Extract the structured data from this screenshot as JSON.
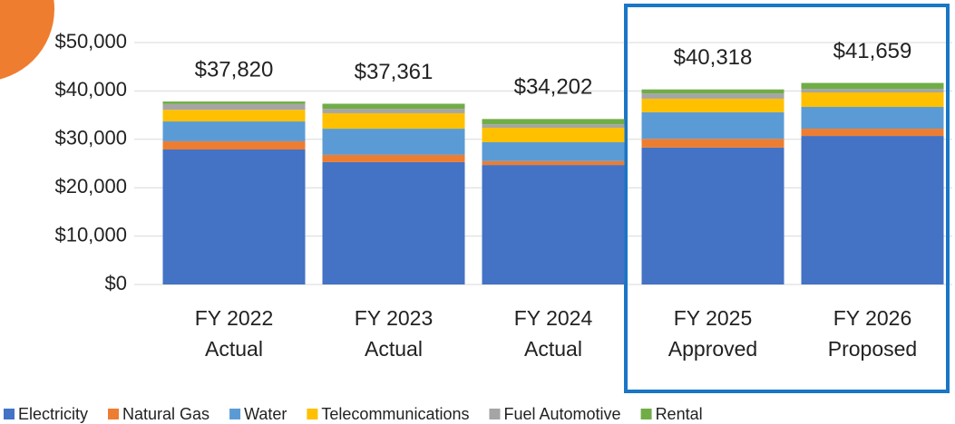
{
  "chart_data": {
    "type": "stacked_bar",
    "categories": [
      [
        "FY 2022",
        "Actual"
      ],
      [
        "FY 2023",
        "Actual"
      ],
      [
        "FY 2024",
        "Actual"
      ],
      [
        "FY 2025",
        "Approved"
      ],
      [
        "FY 2026",
        "Proposed"
      ]
    ],
    "series": [
      {
        "name": "Electricity",
        "color": "#4472c4",
        "values": [
          27900,
          25300,
          24700,
          28300,
          30700
        ]
      },
      {
        "name": "Natural Gas",
        "color": "#ed7d31",
        "values": [
          1700,
          1500,
          800,
          1800,
          1500
        ]
      },
      {
        "name": "Water",
        "color": "#5b9bd5",
        "values": [
          4100,
          5400,
          3900,
          5500,
          4500
        ]
      },
      {
        "name": "Telecommunications",
        "color": "#ffc000",
        "values": [
          2400,
          3200,
          3000,
          2800,
          3000
        ]
      },
      {
        "name": "Fuel Automotive",
        "color": "#a5a5a5",
        "values": [
          1200,
          900,
          700,
          1100,
          700
        ]
      },
      {
        "name": "Rental",
        "color": "#70ad47",
        "values": [
          520,
          1061,
          1102,
          818,
          1259
        ]
      }
    ],
    "totals": [
      37820,
      37361,
      34202,
      40318,
      41659
    ],
    "total_labels": [
      "$37,820",
      "$37,361",
      "$34,202",
      "$40,318",
      "$41,659"
    ],
    "ylim": [
      0,
      50000
    ],
    "yticks": [
      {
        "value": 0,
        "label": "$0"
      },
      {
        "value": 10000,
        "label": "$10,000"
      },
      {
        "value": 20000,
        "label": "$20,000"
      },
      {
        "value": 30000,
        "label": "$30,000"
      },
      {
        "value": 40000,
        "label": "$40,000"
      },
      {
        "value": 50000,
        "label": "$50,000"
      }
    ],
    "grid": true,
    "legend": "bottom"
  }
}
